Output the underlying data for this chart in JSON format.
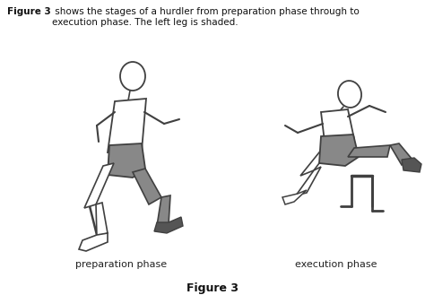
{
  "title_bold": "Figure 3",
  "title_text": " shows the stages of a hurdler from preparation phase through to\nexecution phase. The left leg is shaded.",
  "label_left": "preparation phase",
  "label_right": "execution phase",
  "figure_label": "Figure 3",
  "bg_color": "#ffffff",
  "outline_color": "#404040",
  "shaded_color": "#888888",
  "shaded_dark": "#555555",
  "fig_width": 4.74,
  "fig_height": 3.29,
  "dpi": 100
}
